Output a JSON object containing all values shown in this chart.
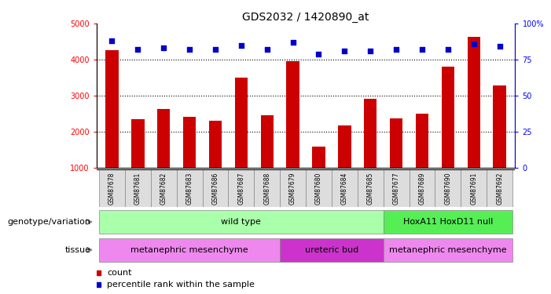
{
  "title": "GDS2032 / 1420890_at",
  "samples": [
    "GSM87678",
    "GSM87681",
    "GSM87682",
    "GSM87683",
    "GSM87686",
    "GSM87687",
    "GSM87688",
    "GSM87679",
    "GSM87680",
    "GSM87684",
    "GSM87685",
    "GSM87677",
    "GSM87689",
    "GSM87690",
    "GSM87691",
    "GSM87692"
  ],
  "counts": [
    4250,
    2350,
    2620,
    2400,
    2300,
    3500,
    2450,
    3950,
    1580,
    2180,
    2920,
    2360,
    2500,
    3800,
    4620,
    3280
  ],
  "percentile": [
    88,
    82,
    83,
    82,
    82,
    85,
    82,
    87,
    79,
    81,
    81,
    82,
    82,
    82,
    86,
    84
  ],
  "ylim_left": [
    1000,
    5000
  ],
  "ylim_right": [
    0,
    100
  ],
  "yticks_left": [
    1000,
    2000,
    3000,
    4000,
    5000
  ],
  "yticks_right": [
    0,
    25,
    50,
    75,
    100
  ],
  "bar_color": "#cc0000",
  "dot_color": "#0000cc",
  "grid_color": "#000000",
  "background_color": "#ffffff",
  "genotype_colors": {
    "wild_type": "#aaffaa",
    "hoxa11": "#55ee55"
  },
  "tissue_colors": {
    "meta": "#ee88ee",
    "ureteric": "#cc33cc"
  },
  "genotype_groups": [
    {
      "label": "wild type",
      "start": 0,
      "end": 11,
      "color": "#aaffaa"
    },
    {
      "label": "HoxA11 HoxD11 null",
      "start": 11,
      "end": 16,
      "color": "#55ee55"
    }
  ],
  "tissue_groups": [
    {
      "label": "metanephric mesenchyme",
      "start": 0,
      "end": 7,
      "color": "#ee88ee"
    },
    {
      "label": "ureteric bud",
      "start": 7,
      "end": 11,
      "color": "#cc33cc"
    },
    {
      "label": "metanephric mesenchyme",
      "start": 11,
      "end": 16,
      "color": "#ee88ee"
    }
  ],
  "left_label": "genotype/variation",
  "tissue_label": "tissue",
  "legend_count_label": "count",
  "legend_pct_label": "percentile rank within the sample",
  "title_fontsize": 10,
  "tick_fontsize": 7,
  "label_fontsize": 8,
  "annot_fontsize": 8
}
